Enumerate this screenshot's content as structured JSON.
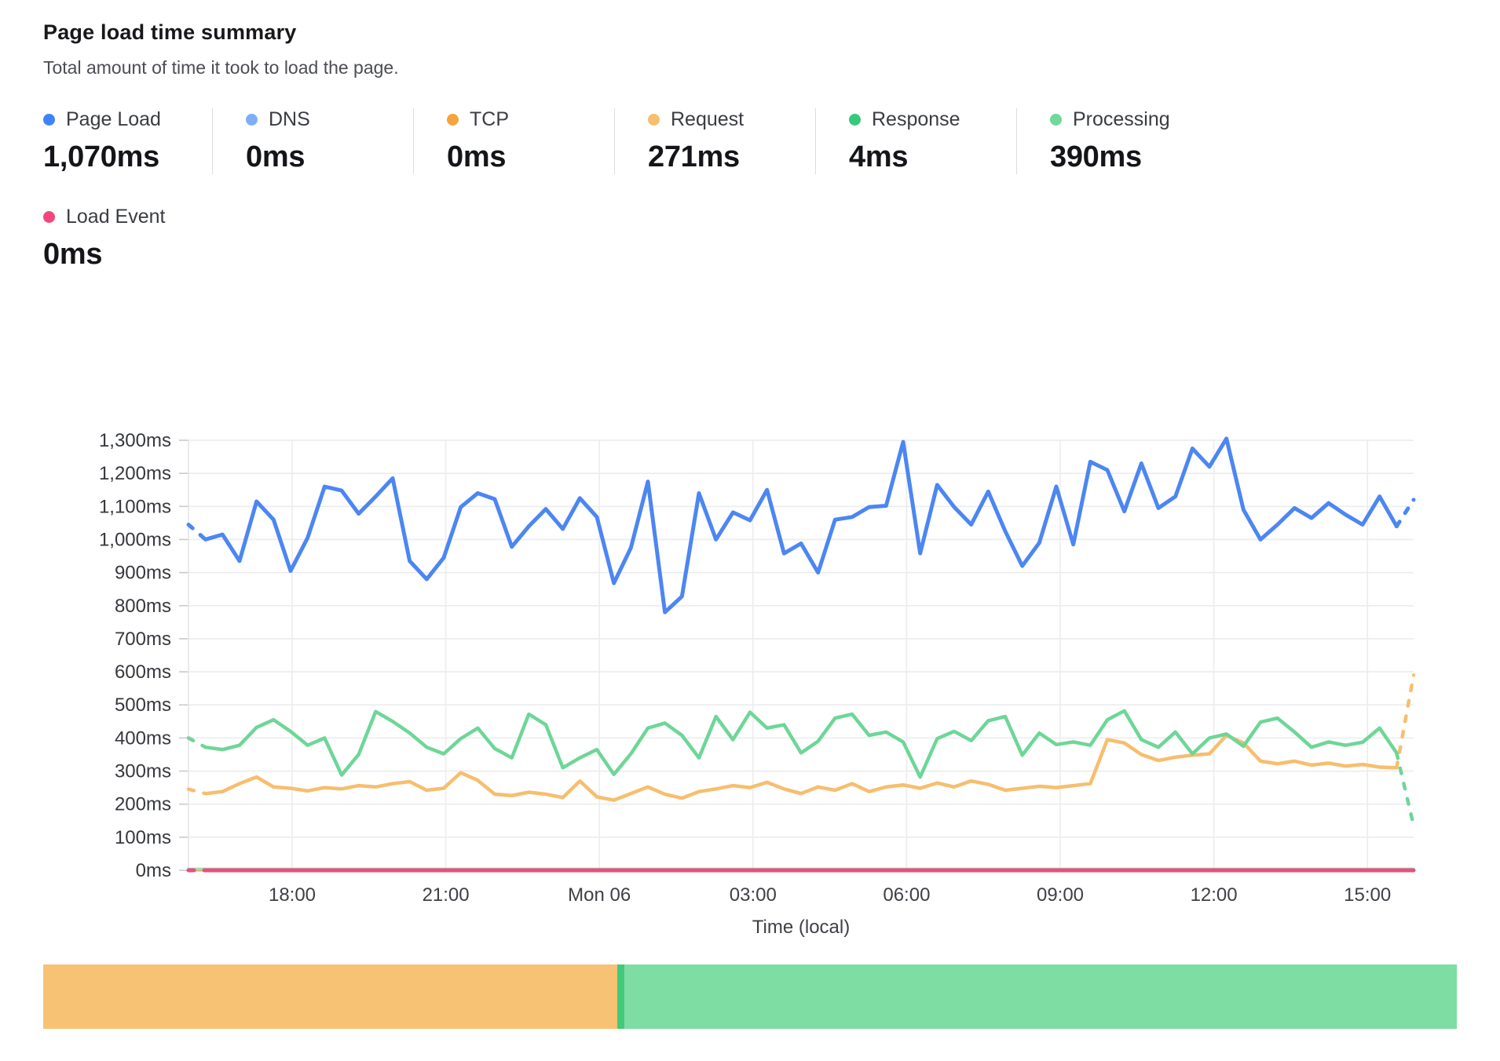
{
  "header": {
    "title": "Page load time summary",
    "subtitle": "Total amount of time it took to load the page."
  },
  "stats": {
    "items": [
      {
        "label": "Page Load",
        "value": "1,070ms",
        "color": "#3F83F8"
      },
      {
        "label": "DNS",
        "value": "0ms",
        "color": "#7FAEF4"
      },
      {
        "label": "TCP",
        "value": "0ms",
        "color": "#F5A33B"
      },
      {
        "label": "Request",
        "value": "271ms",
        "color": "#F6BE6E"
      },
      {
        "label": "Response",
        "value": "4ms",
        "color": "#36C97B"
      },
      {
        "label": "Processing",
        "value": "390ms",
        "color": "#70D89B"
      }
    ],
    "load_event": {
      "label": "Load Event",
      "value": "0ms",
      "color": "#F2477D"
    }
  },
  "chart_data": {
    "type": "line",
    "title": "Page load time summary",
    "xlabel": "Time (local)",
    "ylabel": "",
    "ylim": [
      0,
      1300
    ],
    "y_tick_step": 100,
    "y_tick_suffix": "ms",
    "x_ticks": [
      "18:00",
      "21:00",
      "Mon 06",
      "03:00",
      "06:00",
      "09:00",
      "12:00",
      "15:00"
    ],
    "grid": true,
    "legend_position": "top",
    "series": [
      {
        "name": "dns",
        "label": "DNS",
        "color": "#7FAEF4",
        "width": 3,
        "flat_value": 0,
        "dash_first": false,
        "dash_last": false
      },
      {
        "name": "tcp",
        "label": "TCP",
        "color": "#F5A33B",
        "width": 3,
        "flat_value": 0,
        "dash_first": false,
        "dash_last": false
      },
      {
        "name": "request",
        "label": "Request",
        "color": "#F6BE6E",
        "width": 4.5,
        "dash_first": true,
        "dash_last": true,
        "values": [
          245,
          232,
          238,
          262,
          282,
          252,
          248,
          240,
          250,
          246,
          256,
          252,
          262,
          268,
          242,
          248,
          295,
          272,
          230,
          226,
          236,
          230,
          220,
          270,
          222,
          212,
          232,
          252,
          230,
          218,
          238,
          246,
          256,
          250,
          266,
          246,
          232,
          252,
          242,
          262,
          238,
          252,
          258,
          248,
          264,
          252,
          270,
          260,
          242,
          248,
          254,
          250,
          256,
          262,
          395,
          385,
          350,
          332,
          342,
          348,
          352,
          408,
          385,
          330,
          322,
          330,
          318,
          324,
          315,
          320,
          312,
          310,
          590
        ]
      },
      {
        "name": "processing",
        "label": "Processing",
        "color": "#6ED697",
        "width": 4.5,
        "dash_first": true,
        "dash_last": true,
        "values": [
          400,
          372,
          365,
          378,
          432,
          455,
          420,
          378,
          400,
          288,
          350,
          480,
          450,
          415,
          372,
          352,
          398,
          430,
          368,
          340,
          472,
          440,
          310,
          340,
          365,
          290,
          352,
          430,
          445,
          408,
          340,
          465,
          395,
          478,
          430,
          440,
          355,
          390,
          460,
          472,
          408,
          418,
          388,
          282,
          398,
          420,
          392,
          452,
          465,
          348,
          415,
          380,
          388,
          378,
          455,
          482,
          395,
          372,
          418,
          352,
          400,
          412,
          375,
          448,
          460,
          418,
          372,
          388,
          378,
          387,
          430,
          355,
          135
        ]
      },
      {
        "name": "response",
        "label": "Response",
        "color": "#98DFB6",
        "width": 3.5,
        "flat_value": 4,
        "dash_first": false,
        "dash_last": false
      },
      {
        "name": "load-event",
        "label": "Load Event",
        "color": "#E94E7D",
        "width": 5,
        "flat_value": 0,
        "dash_first": true,
        "dash_last": false
      },
      {
        "name": "page-load",
        "label": "Page Load",
        "color": "#4C86F2",
        "width": 5,
        "dash_first": true,
        "dash_last": true,
        "values": [
          1045,
          1000,
          1015,
          935,
          1115,
          1060,
          905,
          1005,
          1160,
          1148,
          1078,
          1130,
          1185,
          935,
          880,
          945,
          1098,
          1140,
          1122,
          978,
          1040,
          1092,
          1032,
          1125,
          1068,
          868,
          975,
          1175,
          780,
          828,
          1140,
          1000,
          1082,
          1058,
          1150,
          958,
          988,
          900,
          1060,
          1068,
          1098,
          1102,
          1295,
          958,
          1165,
          1098,
          1045,
          1145,
          1025,
          920,
          990,
          1160,
          985,
          1235,
          1210,
          1085,
          1230,
          1095,
          1130,
          1275,
          1220,
          1305,
          1090,
          1000,
          1045,
          1095,
          1065,
          1110,
          1075,
          1045,
          1130,
          1040,
          1120
        ]
      }
    ]
  },
  "timeline_bar": {
    "segments": [
      {
        "name": "timeline-segment-request",
        "color": "#F7C274",
        "pct": 40.6
      },
      {
        "name": "timeline-segment-divider",
        "color": "#42CA7A",
        "pct": 0.5
      },
      {
        "name": "timeline-segment-processing",
        "color": "#7EDDA2",
        "pct": 58.9
      }
    ]
  }
}
